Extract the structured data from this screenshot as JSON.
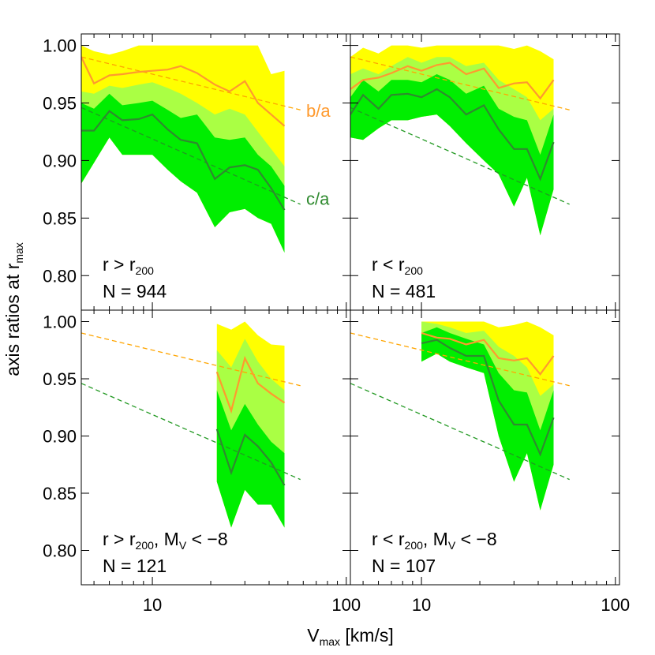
{
  "chart_data": {
    "type": "area",
    "xscale": "log",
    "xlim": [
      4.3,
      105
    ],
    "ylim": [
      0.77,
      1.01
    ],
    "x_ticks": [
      {
        "value": 10,
        "label": "10"
      },
      {
        "value": 100,
        "label": "100"
      }
    ],
    "y_ticks": [
      {
        "value": 0.8,
        "label": "0.80"
      },
      {
        "value": 0.85,
        "label": "0.85"
      },
      {
        "value": 0.9,
        "label": "0.90"
      },
      {
        "value": 0.95,
        "label": "0.95"
      },
      {
        "value": 1.0,
        "label": "1.00"
      }
    ],
    "xlabel": {
      "main": "V",
      "sub": "max",
      "rest": " [km/s]"
    },
    "ylabel": {
      "main": "axis ratios at r",
      "sub": "max"
    },
    "colors": {
      "ba_line": "#ff9a2e",
      "ca_line": "#2f8a2f",
      "ba_fit": "#ffa500",
      "ca_fit": "#229922",
      "band_outer": "#ffff00",
      "band_mid": "#aaff44",
      "band_inner": "#00ee00"
    },
    "fit_lines": {
      "ba": [
        [
          4.3,
          0.99
        ],
        [
          58,
          0.944
        ]
      ],
      "ca": [
        [
          4.3,
          0.946
        ],
        [
          58,
          0.862
        ]
      ]
    },
    "series_labels": {
      "ba": "b/a",
      "ca": "c/a"
    },
    "panels": [
      {
        "id": "top-left",
        "label_line1": {
          "pre": "r > r",
          "sub": "200",
          "post": ""
        },
        "label_line2": "N = 944",
        "show_series_labels": true,
        "x": [
          4.3,
          5,
          6,
          7,
          8.5,
          10,
          12,
          14,
          17,
          21,
          25,
          30,
          35,
          41,
          48
        ],
        "ba_median": [
          0.99,
          0.967,
          0.974,
          0.975,
          0.977,
          0.978,
          0.979,
          0.982,
          0.976,
          0.966,
          0.96,
          0.969,
          0.95,
          0.94,
          0.93
        ],
        "ca_median": [
          0.926,
          0.926,
          0.943,
          0.935,
          0.936,
          0.94,
          0.927,
          0.918,
          0.915,
          0.884,
          0.894,
          0.896,
          0.892,
          0.876,
          0.857
        ],
        "outer_upper": [
          1.0,
          0.995,
          0.992,
          0.995,
          1.0,
          1.0,
          1.0,
          1.0,
          1.0,
          1.0,
          1.0,
          1.0,
          1.0,
          0.975,
          0.978
        ],
        "mid_upper": [
          0.96,
          0.958,
          0.965,
          0.963,
          0.966,
          0.968,
          0.963,
          0.958,
          0.95,
          0.94,
          0.945,
          0.94,
          0.925,
          0.91,
          0.895
        ],
        "inner_upper": [
          0.95,
          0.945,
          0.958,
          0.948,
          0.95,
          0.952,
          0.944,
          0.937,
          0.94,
          0.92,
          0.918,
          0.92,
          0.905,
          0.895,
          0.878
        ],
        "inner_lower": [
          0.88,
          0.898,
          0.92,
          0.905,
          0.905,
          0.905,
          0.892,
          0.882,
          0.872,
          0.842,
          0.855,
          0.858,
          0.85,
          0.845,
          0.82
        ]
      },
      {
        "id": "top-right",
        "label_line1": {
          "pre": "r < r",
          "sub": "200",
          "post": ""
        },
        "label_line2": "N = 481",
        "show_series_labels": false,
        "x": [
          4.3,
          5,
          6,
          7,
          8.5,
          10,
          12,
          14,
          17,
          21,
          25,
          30,
          35,
          41,
          48
        ],
        "ba_median": [
          0.962,
          0.97,
          0.972,
          0.976,
          0.982,
          0.978,
          0.983,
          0.985,
          0.975,
          0.98,
          0.963,
          0.967,
          0.968,
          0.954,
          0.97
        ],
        "ca_median": [
          0.94,
          0.957,
          0.945,
          0.957,
          0.958,
          0.955,
          0.962,
          0.955,
          0.94,
          0.948,
          0.927,
          0.91,
          0.91,
          0.884,
          0.916
        ],
        "outer_upper": [
          0.99,
          0.998,
          0.993,
          1.0,
          1.0,
          0.998,
          1.0,
          1.0,
          1.0,
          1.0,
          1.0,
          0.997,
          1.0,
          0.995,
          0.988
        ],
        "mid_upper": [
          0.975,
          0.98,
          0.975,
          0.982,
          0.99,
          0.985,
          0.99,
          0.99,
          0.982,
          0.985,
          0.97,
          0.962,
          0.955,
          0.935,
          0.945
        ],
        "inner_upper": [
          0.955,
          0.97,
          0.96,
          0.97,
          0.97,
          0.968,
          0.975,
          0.97,
          0.958,
          0.965,
          0.945,
          0.938,
          0.935,
          0.905,
          0.94
        ],
        "inner_lower": [
          0.92,
          0.918,
          0.928,
          0.935,
          0.935,
          0.938,
          0.94,
          0.93,
          0.915,
          0.9,
          0.888,
          0.86,
          0.885,
          0.835,
          0.875
        ]
      },
      {
        "id": "bottom-left",
        "label_line1": {
          "pre": "r > r",
          "sub": "200",
          "post": ", M",
          "sub2": "V",
          "post2": " < −8"
        },
        "label_line2": "N = 121",
        "show_series_labels": false,
        "x": [
          21.5,
          25.5,
          30,
          35,
          41,
          48
        ],
        "ba_median": [
          0.956,
          0.922,
          0.968,
          0.946,
          0.937,
          0.929
        ],
        "ca_median": [
          0.906,
          0.868,
          0.901,
          0.891,
          0.877,
          0.857
        ],
        "outer_upper": [
          0.998,
          0.993,
          1.0,
          0.988,
          0.98,
          0.979
        ],
        "mid_upper": [
          0.975,
          0.96,
          0.985,
          0.965,
          0.95,
          0.94
        ],
        "inner_upper": [
          0.94,
          0.905,
          0.928,
          0.91,
          0.895,
          0.885
        ],
        "inner_lower": [
          0.86,
          0.82,
          0.853,
          0.84,
          0.84,
          0.82
        ]
      },
      {
        "id": "bottom-right",
        "label_line1": {
          "pre": "r < r",
          "sub": "200",
          "post": ", M",
          "sub2": "V",
          "post2": " < −8"
        },
        "label_line2": "N = 107",
        "show_series_labels": false,
        "x": [
          10,
          12,
          14,
          17,
          21,
          25,
          30,
          35,
          41,
          48
        ],
        "ba_median": [
          0.99,
          0.986,
          0.985,
          0.98,
          0.984,
          0.968,
          0.966,
          0.968,
          0.954,
          0.97
        ],
        "ca_median": [
          0.981,
          0.984,
          0.977,
          0.97,
          0.97,
          0.931,
          0.91,
          0.91,
          0.884,
          0.916
        ],
        "outer_upper": [
          1.0,
          1.0,
          1.0,
          1.0,
          1.0,
          0.995,
          0.997,
          1.0,
          0.995,
          0.988
        ],
        "mid_upper": [
          1.0,
          0.998,
          0.995,
          0.99,
          0.992,
          0.978,
          0.97,
          0.96,
          0.935,
          0.945
        ],
        "inner_upper": [
          0.99,
          0.995,
          0.99,
          0.985,
          0.98,
          0.955,
          0.94,
          0.938,
          0.905,
          0.94
        ],
        "inner_lower": [
          0.965,
          0.972,
          0.965,
          0.96,
          0.955,
          0.9,
          0.86,
          0.885,
          0.835,
          0.875
        ]
      }
    ]
  }
}
